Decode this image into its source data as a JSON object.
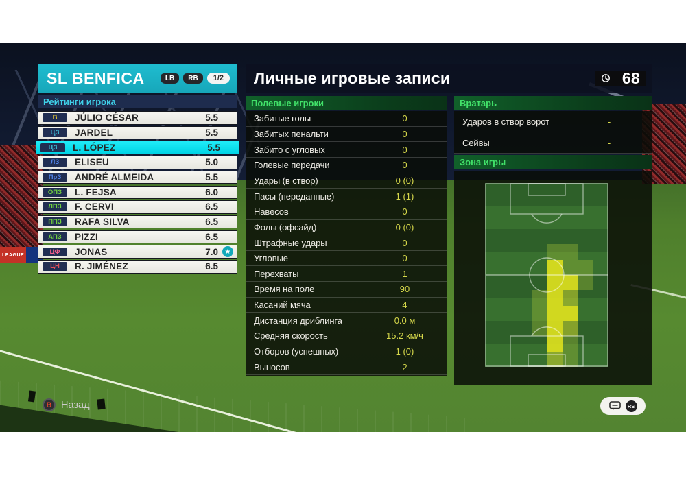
{
  "team_panel": {
    "title": "SL BENFICA",
    "lb_button": "LB",
    "rb_button": "RB",
    "page_indicator": "1/2",
    "section": "Рейтинги игрока",
    "players": [
      {
        "pos": "В",
        "pos_color": "#e0c535",
        "name": "JÚLIO CÉSAR",
        "rating": "5.5",
        "selected": false,
        "star": false
      },
      {
        "pos": "ЦЗ",
        "pos_color": "#3ec3dc",
        "name": "JARDEL",
        "rating": "5.5",
        "selected": false,
        "star": false
      },
      {
        "pos": "ЦЗ",
        "pos_color": "#3ec3dc",
        "name": "L. LÓPEZ",
        "rating": "5.5",
        "selected": true,
        "star": false
      },
      {
        "pos": "ЛЗ",
        "pos_color": "#4f82e8",
        "name": "ELISEU",
        "rating": "5.0",
        "selected": false,
        "star": false
      },
      {
        "pos": "ПрЗ",
        "pos_color": "#4f82e8",
        "name": "ANDRÉ ALMEIDA",
        "rating": "5.5",
        "selected": false,
        "star": false
      },
      {
        "pos": "ОПЗ",
        "pos_color": "#71d23f",
        "name": "L. FEJSA",
        "rating": "6.0",
        "selected": false,
        "star": false
      },
      {
        "pos": "ЛПЗ",
        "pos_color": "#71d23f",
        "name": "F. CERVI",
        "rating": "6.5",
        "selected": false,
        "star": false
      },
      {
        "pos": "ППЗ",
        "pos_color": "#71d23f",
        "name": "RAFA SILVA",
        "rating": "6.5",
        "selected": false,
        "star": false
      },
      {
        "pos": "АПЗ",
        "pos_color": "#71d23f",
        "name": "PIZZI",
        "rating": "6.5",
        "selected": false,
        "star": false
      },
      {
        "pos": "ЦФ",
        "pos_color": "#ef5f8a",
        "name": "JONAS",
        "rating": "7.0",
        "selected": false,
        "star": true
      },
      {
        "pos": "ЦН",
        "pos_color": "#e04f58",
        "name": "R. JIMÉNEZ",
        "rating": "6.5",
        "selected": false,
        "star": false
      }
    ],
    "accent_color": "#1cb7c9",
    "selected_color": "#0be2f2"
  },
  "records_panel": {
    "title": "Личные игровые записи",
    "time_badge": "68",
    "field_section": "Полевые игроки",
    "field_stats": [
      {
        "label": "Забитые голы",
        "value": "0"
      },
      {
        "label": "Забитых пенальти",
        "value": "0"
      },
      {
        "label": "Забито с угловых",
        "value": "0"
      },
      {
        "label": "Голевые передачи",
        "value": "0"
      },
      {
        "label": "Удары (в створ)",
        "value": "0 (0)"
      },
      {
        "label": "Пасы (переданные)",
        "value": "1 (1)"
      },
      {
        "label": "Навесов",
        "value": "0"
      },
      {
        "label": "Фолы (офсайд)",
        "value": "0 (0)"
      },
      {
        "label": "Штрафные удары",
        "value": "0"
      },
      {
        "label": "Угловые",
        "value": "0"
      },
      {
        "label": "Перехваты",
        "value": "1"
      },
      {
        "label": "Время на поле",
        "value": "90"
      },
      {
        "label": "Касаний мяча",
        "value": "4"
      },
      {
        "label": "Дистанция дриблинга",
        "value": "0.0 м"
      },
      {
        "label": "Средняя скорость",
        "value": "15.2 км/ч"
      },
      {
        "label": "Отборов (успешных)",
        "value": "1 (0)"
      },
      {
        "label": "Выносов",
        "value": "2"
      }
    ],
    "gk_section": "Вратарь",
    "gk_stats": [
      {
        "label": "Ударов в створ ворот",
        "value": "-"
      },
      {
        "label": "Сейвы",
        "value": "-"
      }
    ],
    "zone_section": "Зона игры",
    "section_text_color": "#41e169",
    "value_color": "#d6d84b"
  },
  "chart_data": {
    "type": "heatmap",
    "title": "Зона игры",
    "grid_cols": 8,
    "grid_rows": 12,
    "cells": [
      [
        4,
        4,
        1
      ],
      [
        4,
        5,
        1
      ],
      [
        5,
        4,
        3
      ],
      [
        5,
        5,
        1
      ],
      [
        5,
        6,
        1
      ],
      [
        6,
        4,
        3
      ],
      [
        6,
        5,
        3
      ],
      [
        6,
        6,
        1
      ],
      [
        7,
        3,
        1
      ],
      [
        7,
        4,
        3
      ],
      [
        7,
        5,
        2
      ],
      [
        8,
        3,
        1
      ],
      [
        8,
        4,
        3
      ],
      [
        8,
        5,
        3
      ],
      [
        9,
        3,
        1
      ],
      [
        9,
        4,
        3
      ],
      [
        9,
        5,
        2
      ],
      [
        10,
        4,
        3
      ],
      [
        10,
        5,
        1
      ],
      [
        11,
        4,
        2
      ],
      [
        11,
        5,
        1
      ]
    ],
    "level_colors": {
      "1": "rgba(180,205,60,0.32)",
      "2": "rgba(205,215,45,0.55)",
      "3": "rgba(230,230,30,0.88)"
    }
  },
  "footer": {
    "back_button": "B",
    "back_label": "Назад",
    "rs_button": "RS"
  },
  "background": {
    "ad_text": "LEAGUE"
  }
}
